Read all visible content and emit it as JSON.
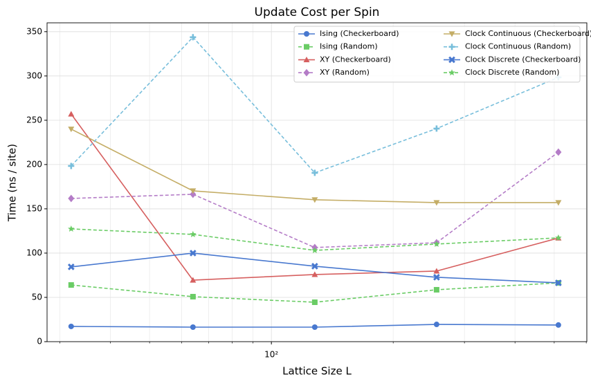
{
  "chart_data": {
    "type": "line",
    "title": "Update Cost per Spin",
    "xlabel": "Lattice Size L",
    "ylabel": "Time (ns / site)",
    "x": [
      32,
      64,
      128,
      256,
      512
    ],
    "xscale": "log",
    "xlim": [
      27.9,
      602
    ],
    "xticks": [
      {
        "value": 100,
        "label": "10²"
      }
    ],
    "xminorticks": [
      30,
      40,
      50,
      60,
      70,
      80,
      90,
      200,
      300,
      400,
      500,
      600
    ],
    "ylim": [
      0,
      360
    ],
    "yticks": [
      0,
      50,
      100,
      150,
      200,
      250,
      300,
      350
    ],
    "grid": true,
    "legend": "upper right",
    "series": [
      {
        "name": "Ising (Checkerboard)",
        "color": "#4878cf",
        "marker": "circle",
        "dash": false,
        "values": [
          17.2,
          16.4,
          16.4,
          19.5,
          18.8
        ]
      },
      {
        "name": "Ising (Random)",
        "color": "#6acc65",
        "marker": "square",
        "dash": true,
        "values": [
          64,
          50.8,
          44.5,
          58.6,
          66.4
        ]
      },
      {
        "name": "XY (Checkerboard)",
        "color": "#d65f5f",
        "marker": "triangle",
        "dash": false,
        "values": [
          257,
          69.5,
          75.8,
          79.7,
          117
        ]
      },
      {
        "name": "XY (Random)",
        "color": "#b47cc7",
        "marker": "diamond",
        "dash": true,
        "values": [
          161.7,
          166.4,
          106.3,
          111.7,
          214
        ]
      },
      {
        "name": "Clock Continuous (Checkerboard)",
        "color": "#c4ad66",
        "marker": "triangle-down",
        "dash": false,
        "values": [
          240,
          170.3,
          160.2,
          157,
          157
        ]
      },
      {
        "name": "Clock Continuous (Random)",
        "color": "#77bedb",
        "marker": "plus",
        "dash": true,
        "values": [
          198.4,
          343.8,
          190.6,
          240.6,
          298.4
        ]
      },
      {
        "name": "Clock Discrete (Checkerboard)",
        "color": "#4878cf",
        "marker": "x",
        "dash": false,
        "values": [
          84.4,
          100,
          85.2,
          72.7,
          66.4
        ]
      },
      {
        "name": "Clock Discrete (Random)",
        "color": "#6acc65",
        "marker": "star",
        "dash": true,
        "values": [
          127.3,
          121.1,
          103.1,
          110.2,
          117.2
        ]
      }
    ]
  }
}
